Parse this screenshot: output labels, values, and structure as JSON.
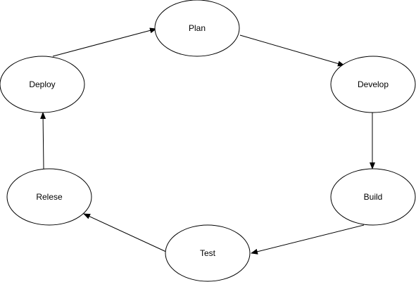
{
  "diagram": {
    "nodes": {
      "plan": {
        "label": "Plan"
      },
      "develop": {
        "label": "Develop"
      },
      "build": {
        "label": "Build"
      },
      "test": {
        "label": "Test"
      },
      "release": {
        "label": "Relese"
      },
      "deploy": {
        "label": "Deploy"
      }
    },
    "edges": [
      {
        "from": "plan",
        "to": "develop"
      },
      {
        "from": "develop",
        "to": "build"
      },
      {
        "from": "build",
        "to": "test"
      },
      {
        "from": "test",
        "to": "release"
      },
      {
        "from": "release",
        "to": "deploy"
      },
      {
        "from": "deploy",
        "to": "plan"
      }
    ],
    "colors": {
      "stroke": "#000000",
      "fill": "#ffffff",
      "background": "#ffffff"
    }
  }
}
